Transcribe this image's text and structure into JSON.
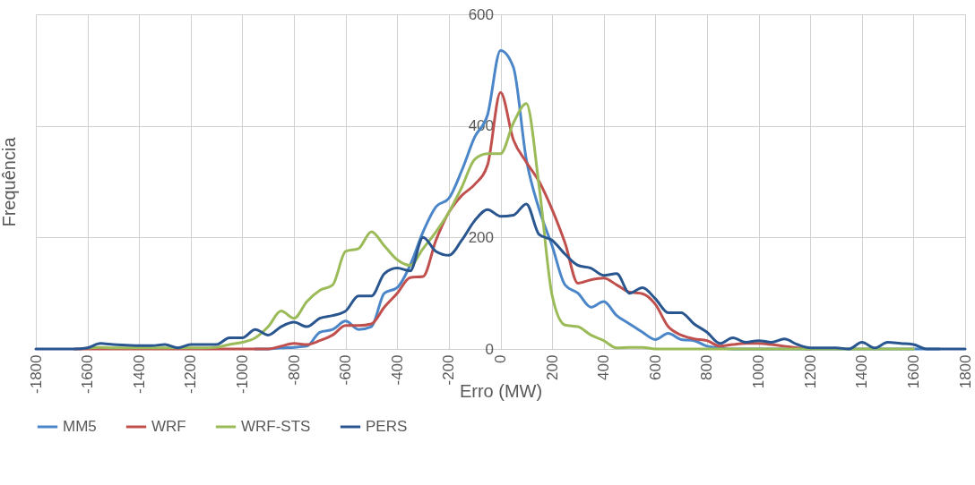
{
  "chart_data": {
    "type": "line",
    "xlabel": "Erro (MW)",
    "ylabel": "Frequência",
    "x": [
      -1800,
      -1750,
      -1700,
      -1650,
      -1600,
      -1550,
      -1500,
      -1450,
      -1400,
      -1350,
      -1300,
      -1250,
      -1200,
      -1150,
      -1100,
      -1050,
      -1000,
      -950,
      -900,
      -850,
      -800,
      -750,
      -700,
      -650,
      -600,
      -550,
      -500,
      -450,
      -400,
      -350,
      -300,
      -250,
      -200,
      -150,
      -100,
      -50,
      0,
      50,
      100,
      150,
      200,
      250,
      300,
      350,
      400,
      450,
      500,
      550,
      600,
      650,
      700,
      750,
      800,
      850,
      900,
      950,
      1000,
      1050,
      1100,
      1150,
      1200,
      1250,
      1300,
      1350,
      1400,
      1450,
      1500,
      1550,
      1600,
      1650,
      1700,
      1750,
      1800
    ],
    "series": [
      {
        "name": "MM5",
        "color": "#4a86c8",
        "values": [
          null,
          null,
          null,
          null,
          null,
          null,
          null,
          null,
          null,
          null,
          null,
          null,
          null,
          null,
          null,
          null,
          null,
          0,
          0,
          2,
          3,
          5,
          30,
          35,
          50,
          35,
          40,
          100,
          110,
          150,
          210,
          255,
          270,
          320,
          380,
          420,
          535,
          505,
          340,
          250,
          185,
          115,
          100,
          75,
          85,
          60,
          45,
          30,
          17,
          28,
          17,
          15,
          5,
          2,
          0,
          0,
          0,
          0,
          0,
          0,
          0,
          0,
          0,
          0,
          0,
          0,
          0,
          0,
          0,
          0,
          0,
          null,
          null
        ]
      },
      {
        "name": "WRF",
        "color": "#c0504d",
        "values": [
          null,
          null,
          null,
          0,
          0,
          0,
          0,
          0,
          0,
          0,
          0,
          0,
          0,
          0,
          0,
          0,
          0,
          0,
          0,
          5,
          10,
          8,
          15,
          25,
          42,
          42,
          45,
          75,
          100,
          128,
          130,
          195,
          245,
          275,
          295,
          330,
          460,
          375,
          335,
          300,
          250,
          190,
          118,
          124,
          127,
          115,
          102,
          99,
          80,
          40,
          25,
          18,
          15,
          5,
          8,
          10,
          10,
          8,
          5,
          2,
          0,
          null,
          null,
          null,
          null,
          null,
          null,
          null,
          null,
          null,
          null,
          null,
          null
        ]
      },
      {
        "name": "WRF-STS",
        "color": "#9bbb59",
        "values": [
          null,
          null,
          null,
          null,
          2,
          3,
          2,
          2,
          2,
          2,
          2,
          2,
          2,
          2,
          3,
          8,
          12,
          20,
          40,
          68,
          55,
          85,
          105,
          115,
          175,
          180,
          210,
          185,
          160,
          150,
          180,
          210,
          245,
          290,
          340,
          350,
          350,
          405,
          440,
          290,
          96,
          43,
          40,
          25,
          15,
          2,
          3,
          3,
          0,
          0,
          0,
          0,
          0,
          0,
          0,
          0,
          0,
          0,
          0,
          0,
          0,
          0,
          0,
          0,
          0,
          0,
          0,
          0,
          0,
          null,
          null,
          null,
          null
        ]
      },
      {
        "name": "PERS",
        "color": "#2a5690",
        "values": [
          0,
          0,
          0,
          0,
          2,
          10,
          8,
          7,
          6,
          6,
          8,
          2,
          8,
          8,
          8,
          20,
          20,
          35,
          25,
          40,
          48,
          40,
          55,
          60,
          68,
          95,
          95,
          135,
          145,
          140,
          200,
          175,
          168,
          195,
          230,
          250,
          238,
          240,
          260,
          205,
          195,
          170,
          150,
          145,
          132,
          135,
          100,
          110,
          90,
          65,
          65,
          45,
          30,
          10,
          20,
          12,
          15,
          12,
          18,
          8,
          2,
          2,
          2,
          0,
          12,
          2,
          12,
          10,
          8,
          0,
          0,
          0,
          0
        ]
      }
    ],
    "xlim": [
      -1800,
      1800
    ],
    "xticks": [
      -1800,
      -1600,
      -1400,
      -1200,
      -1000,
      -800,
      -600,
      -400,
      -200,
      0,
      200,
      400,
      600,
      800,
      1000,
      1200,
      1400,
      1600,
      1800
    ],
    "ylim": [
      0,
      600
    ],
    "yticks": [
      0,
      200,
      400,
      600
    ],
    "grid": true,
    "legend": "bottom",
    "line_style": "solid"
  }
}
